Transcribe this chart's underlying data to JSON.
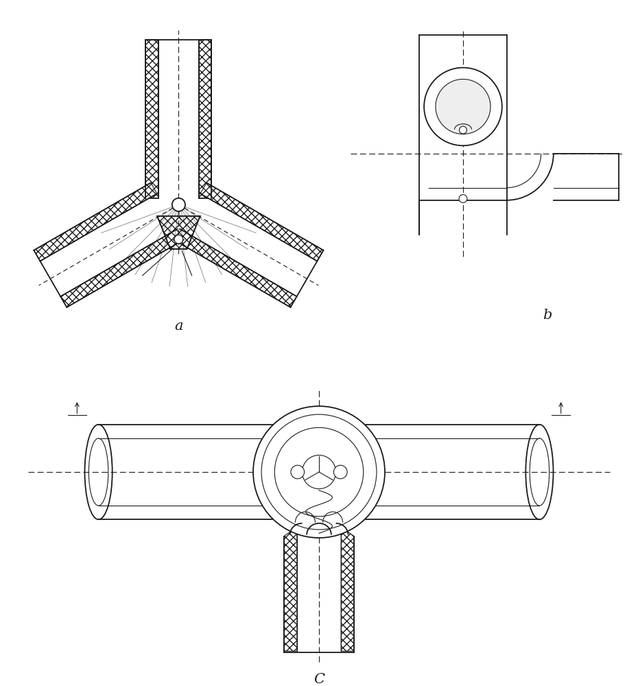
{
  "bg_color": "#ffffff",
  "line_color": "#1a1a1a",
  "fig_width": 9.3,
  "fig_height": 10.0,
  "dpi": 100,
  "label_a": "a",
  "label_b": "b",
  "label_c": "C"
}
